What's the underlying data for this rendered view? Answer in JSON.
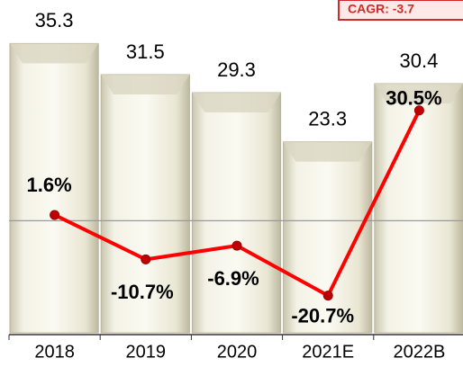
{
  "chart_data": {
    "type": "bar",
    "categories": [
      "2018",
      "2019",
      "2020",
      "2021E",
      "2022B"
    ],
    "series": [
      {
        "name": "Value",
        "type": "bar",
        "color": "#e8e5d2",
        "values": [
          35.3,
          31.5,
          29.3,
          23.3,
          30.4
        ]
      },
      {
        "name": "Growth",
        "type": "line",
        "axis": "y2",
        "color": "#ff0000",
        "values": [
          1.6,
          -10.7,
          -6.9,
          -20.7,
          30.5
        ],
        "value_labels": [
          "1.6%",
          "-10.7%",
          "-6.9%",
          "-20.7%",
          "30.5%"
        ]
      }
    ],
    "ylim": [
      0,
      36
    ],
    "y2lim": [
      -31,
      50.6
    ],
    "annotation": "CAGR: -3.7"
  }
}
